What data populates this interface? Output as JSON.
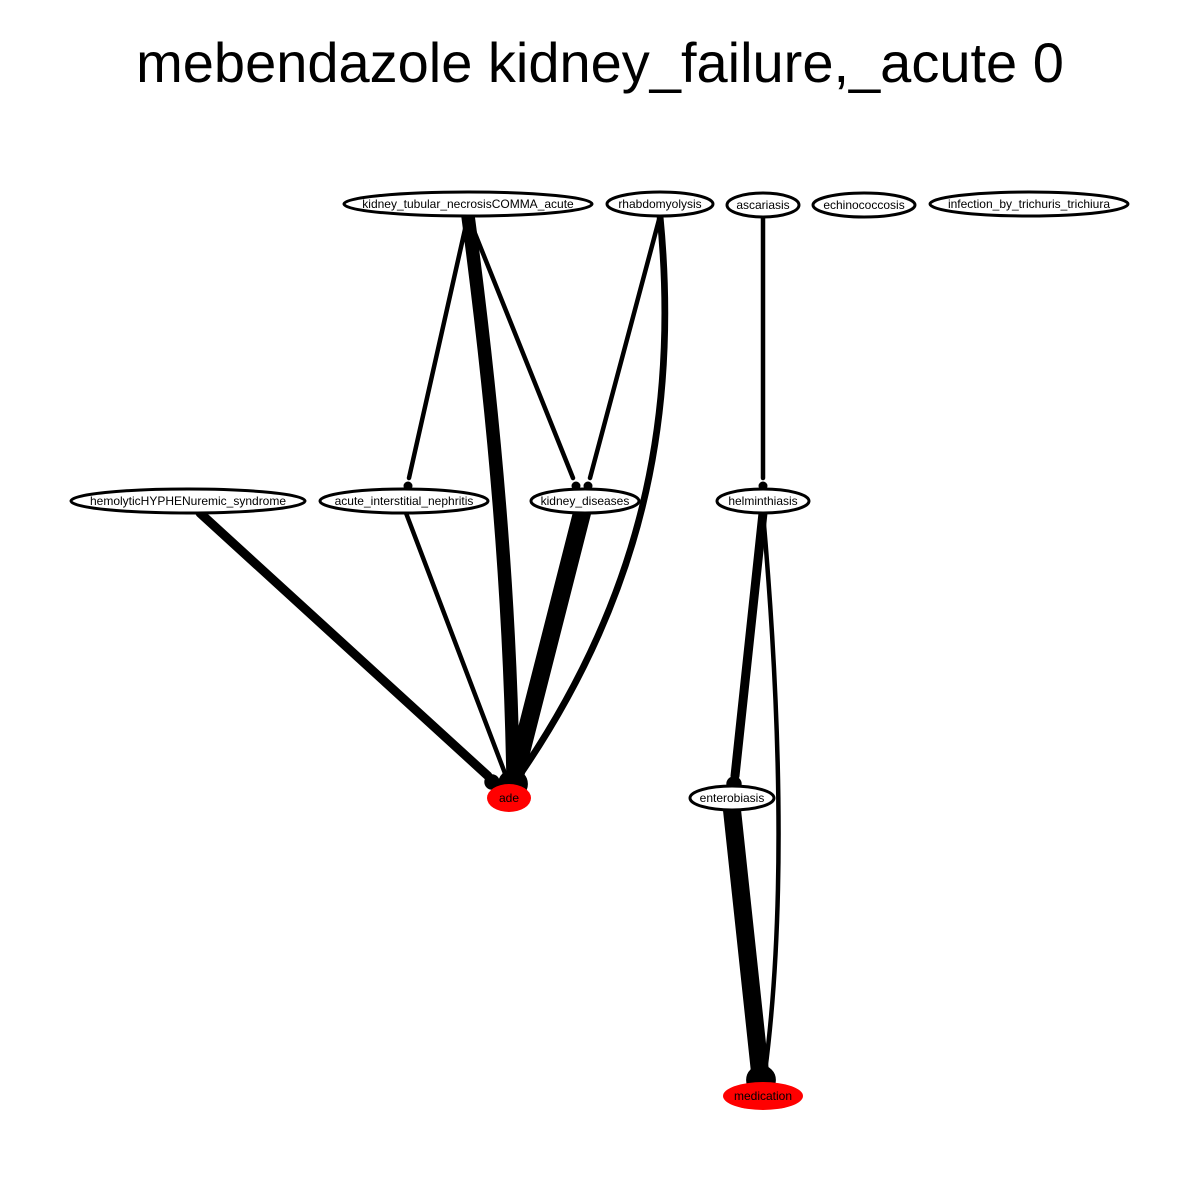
{
  "title": "mebendazole kidney_failure,_acute 0",
  "colors": {
    "background": "#ffffff",
    "node_fill": "#ffffff",
    "node_stroke": "#000000",
    "highlight_fill": "#ff0000",
    "edge": "#000000"
  },
  "nodes": [
    {
      "id": "ktn",
      "label": "kidney_tubular_necrosisCOMMA_acute",
      "highlight": false
    },
    {
      "id": "rhabdo",
      "label": "rhabdomyolysis",
      "highlight": false
    },
    {
      "id": "ascariasis",
      "label": "ascariasis",
      "highlight": false
    },
    {
      "id": "echino",
      "label": "echinococcosis",
      "highlight": false
    },
    {
      "id": "trichuris",
      "label": "infection_by_trichuris_trichiura",
      "highlight": false
    },
    {
      "id": "hus",
      "label": "hemolyticHYPHENuremic_syndrome",
      "highlight": false
    },
    {
      "id": "ain",
      "label": "acute_interstitial_nephritis",
      "highlight": false
    },
    {
      "id": "kd",
      "label": "kidney_diseases",
      "highlight": false
    },
    {
      "id": "helm",
      "label": "helminthiasis",
      "highlight": false
    },
    {
      "id": "ade",
      "label": "ade",
      "highlight": true
    },
    {
      "id": "entero",
      "label": "enterobiasis",
      "highlight": false
    },
    {
      "id": "medication",
      "label": "medication",
      "highlight": true
    }
  ],
  "edges": [
    {
      "source": "ktn",
      "target": "ain",
      "weight": 1
    },
    {
      "source": "ktn",
      "target": "ade",
      "weight": 3
    },
    {
      "source": "ktn",
      "target": "kd",
      "weight": 1
    },
    {
      "source": "rhabdo",
      "target": "kd",
      "weight": 1
    },
    {
      "source": "rhabdo",
      "target": "ade",
      "weight": 1.5
    },
    {
      "source": "ascariasis",
      "target": "helm",
      "weight": 1
    },
    {
      "source": "hus",
      "target": "ade",
      "weight": 2
    },
    {
      "source": "ain",
      "target": "ade",
      "weight": 1
    },
    {
      "source": "kd",
      "target": "ade",
      "weight": 4
    },
    {
      "source": "helm",
      "target": "entero",
      "weight": 2
    },
    {
      "source": "helm",
      "target": "medication",
      "weight": 1
    },
    {
      "source": "entero",
      "target": "medication",
      "weight": 4
    }
  ]
}
